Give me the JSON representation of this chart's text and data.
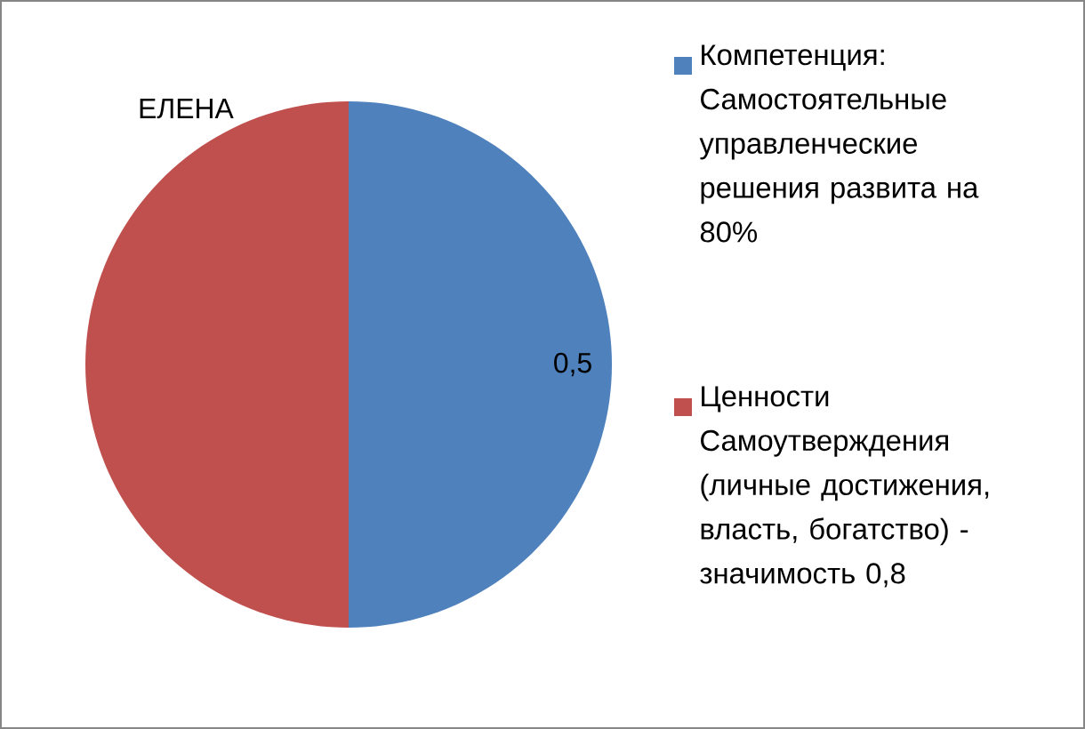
{
  "chart_data": {
    "type": "pie",
    "title": "ЕЛЕНА",
    "categories": [
      "Компетенция: Самостоятельные управленческие решения развита на 80%",
      "Ценности Самоутверждения (личные достижения, власть, богатство) - значимость 0,8"
    ],
    "values": [
      0.5,
      0.5
    ],
    "colors": [
      "#4f81bd",
      "#c0504d"
    ],
    "value_labels": [
      "0,5",
      null
    ],
    "legend": "right"
  }
}
